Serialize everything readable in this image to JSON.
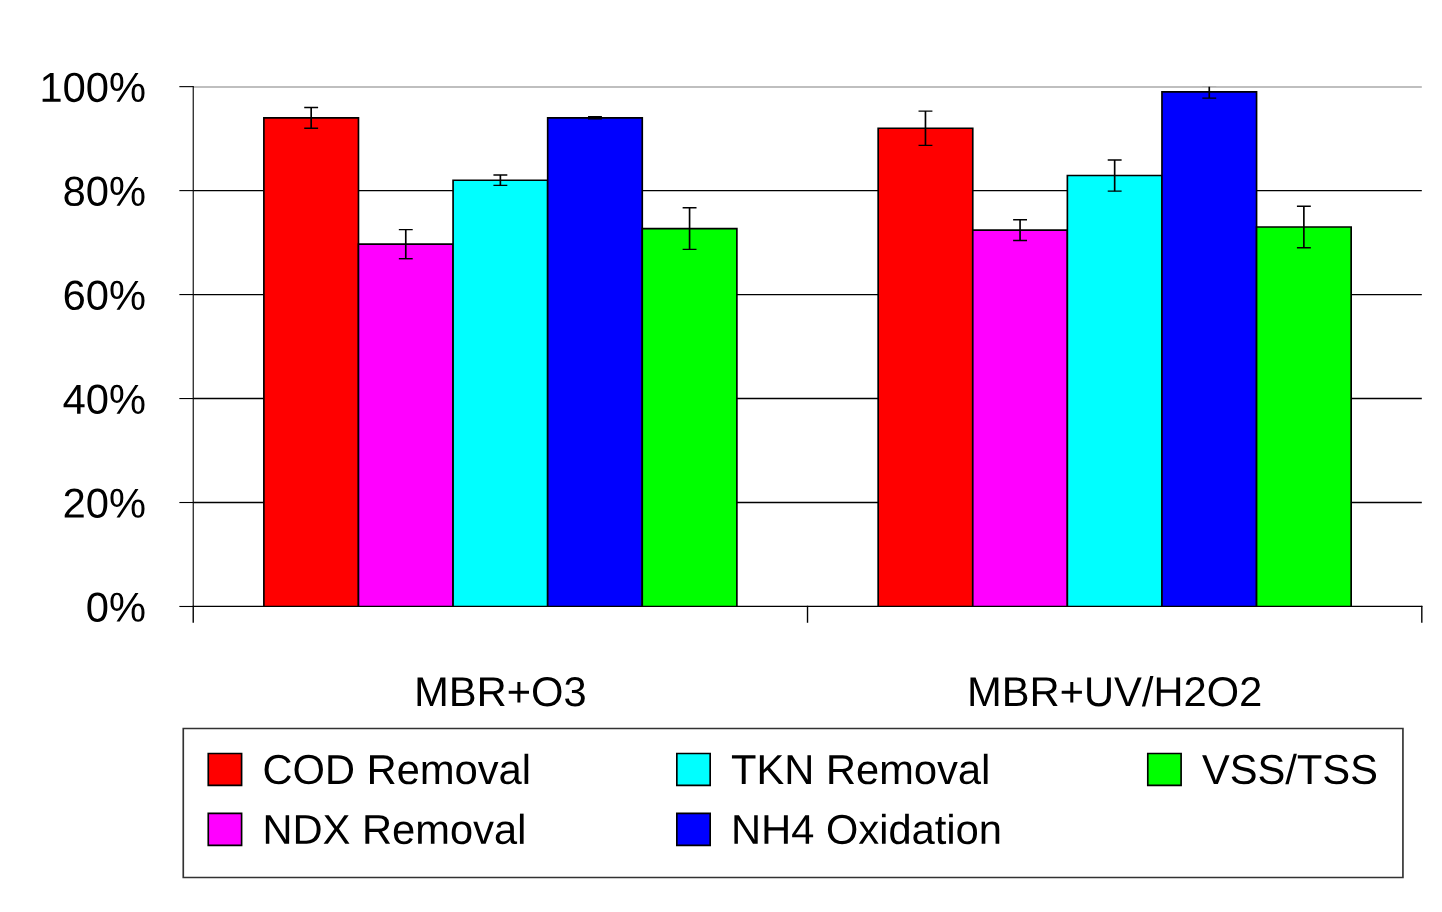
{
  "chart_data": {
    "type": "bar",
    "categories": [
      "MBR+O3",
      "MBR+UV/H2O2"
    ],
    "series": [
      {
        "name": "COD Removal",
        "color": "#ff0000",
        "values": [
          94,
          92
        ],
        "errors": [
          2,
          3.3
        ]
      },
      {
        "name": "NDX Removal",
        "color": "#ff00ff",
        "values": [
          69.7,
          72.4
        ],
        "errors": [
          2.8,
          2
        ]
      },
      {
        "name": "TKN Removal",
        "color": "#00ffff",
        "values": [
          82,
          82.9
        ],
        "errors": [
          1,
          3
        ]
      },
      {
        "name": "NH4 Oxidation",
        "color": "#0000ff",
        "values": [
          94,
          99
        ],
        "errors": [
          0.2,
          1.2
        ]
      },
      {
        "name": "VSS/TSS",
        "color": "#00ff00",
        "values": [
          72.7,
          73
        ],
        "errors": [
          4,
          4
        ]
      }
    ],
    "ylim": [
      0,
      100
    ],
    "yticks": [
      {
        "value": 0,
        "label": "0%"
      },
      {
        "value": 20,
        "label": "20%"
      },
      {
        "value": 40,
        "label": "40%"
      },
      {
        "value": 60,
        "label": "60%"
      },
      {
        "value": 80,
        "label": "80%"
      },
      {
        "value": 100,
        "label": "100%"
      }
    ],
    "grid": "y",
    "legend": "bottom"
  }
}
